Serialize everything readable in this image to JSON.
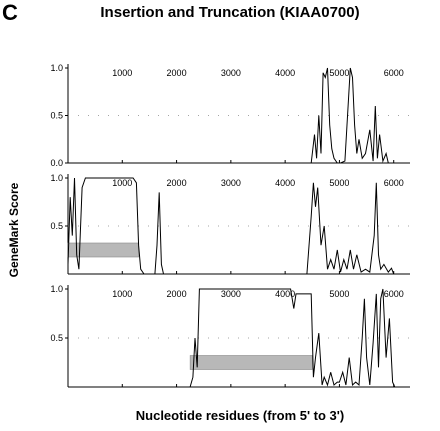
{
  "panel_letter": "C",
  "title": "Insertion and Truncation (KIAA0700)",
  "chart_data": {
    "type": "line",
    "xlabel": "Nucleotide residues (from 5' to 3')",
    "ylabel": "GeneMark Score",
    "xlim": [
      0,
      6300
    ],
    "ylim": [
      0,
      1
    ],
    "x_ticks": [
      1000,
      2000,
      3000,
      4000,
      5000,
      6000
    ],
    "y_ticks_top": [
      "0.0",
      "0.5",
      "1.0"
    ],
    "y_ticks_other": [
      "0.5",
      "1.0"
    ],
    "threshold": 0.5,
    "panels": [
      {
        "bar": null,
        "series": [
          {
            "x": [
              0,
              4480,
              4540,
              4580,
              4620,
              4660,
              4700,
              4740,
              4780,
              4820,
              4860,
              4900,
              4960,
              5020,
              5100,
              5160,
              5200,
              5240,
              5280,
              5320,
              5360,
              5420,
              5480,
              5560,
              5620,
              5660,
              5700,
              5740,
              5800,
              5860,
              5900,
              6000,
              6300
            ],
            "y": [
              0,
              0,
              0.3,
              0.05,
              0.5,
              0.1,
              0.95,
              0.9,
              1.0,
              0.4,
              0.15,
              0.05,
              0,
              0,
              0.02,
              0.6,
              1.0,
              0.9,
              0.4,
              0.1,
              0.25,
              0.05,
              0.1,
              0.35,
              0.02,
              0.6,
              0.05,
              0.3,
              0.02,
              0.1,
              0,
              0,
              0
            ]
          }
        ]
      },
      {
        "bar": [
          0,
          1300
        ],
        "series": [
          {
            "x": [
              0,
              40,
              80,
              120,
              160,
              200,
              260,
              320,
              380,
              1200,
              1260,
              1300,
              1340,
              1400,
              1600,
              1640,
              1680,
              1720,
              1760,
              4400,
              4480,
              4520,
              4560,
              4600,
              4660,
              4720,
              4780,
              4840,
              4900,
              4960,
              5020,
              5080,
              5140,
              5200,
              5260,
              5320,
              5400,
              5480,
              5560,
              5640,
              5680,
              5720,
              5760,
              5820,
              5900,
              5960,
              6000,
              6300
            ],
            "y": [
              0.1,
              0.8,
              0.4,
              1.0,
              0.2,
              0.05,
              0.9,
              1.0,
              1.0,
              1.0,
              0.95,
              0.3,
              0.05,
              0,
              0,
              0.3,
              0.85,
              0.1,
              0,
              0,
              0.6,
              0.95,
              0.7,
              0.9,
              0.3,
              0.5,
              0.05,
              0.15,
              0.05,
              0.25,
              0.02,
              0.15,
              0.05,
              0.25,
              0.05,
              0.2,
              0.02,
              0.05,
              0.02,
              0.4,
              0.95,
              0.2,
              0.05,
              0.1,
              0.02,
              0.06,
              0,
              0
            ]
          }
        ]
      },
      {
        "bar": [
          2250,
          4500
        ],
        "series": [
          {
            "x": [
              0,
              2250,
              2300,
              2340,
              2380,
              2420,
              4100,
              4160,
              4200,
              4480,
              4520,
              4560,
              4620,
              4680,
              4720,
              4780,
              4840,
              4900,
              4960,
              5000,
              5060,
              5120,
              5180,
              5240,
              5300,
              5360,
              5420,
              5460,
              5500,
              5560,
              5620,
              5680,
              5720,
              5760,
              5800,
              5860,
              5920,
              5980,
              6020,
              6300
            ],
            "y": [
              0,
              0,
              0.1,
              0.5,
              0.2,
              1.0,
              1.0,
              0.8,
              0.95,
              0.95,
              0.1,
              0.3,
              0.55,
              0.02,
              0.1,
              0.02,
              0.15,
              0.02,
              0.05,
              0.05,
              0.15,
              0.02,
              0.3,
              0.02,
              0.05,
              0.02,
              0.5,
              0.9,
              0.3,
              0.02,
              0.45,
              0.95,
              0.2,
              0.9,
              1.0,
              0.3,
              0.7,
              0.05,
              0,
              0
            ]
          }
        ]
      }
    ]
  }
}
